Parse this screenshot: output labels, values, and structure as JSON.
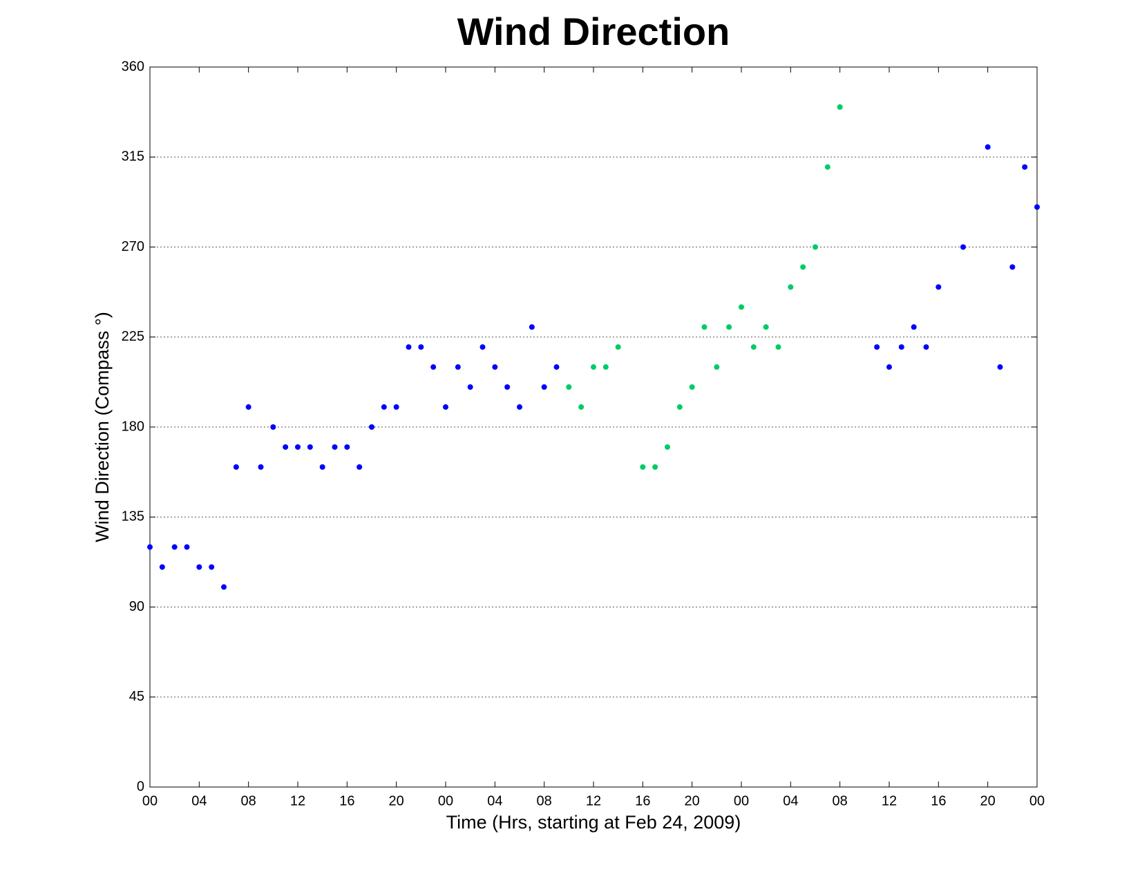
{
  "chart_data": {
    "type": "scatter",
    "title": "Wind Direction",
    "xlabel": "Time (Hrs, starting at Feb 24, 2009)",
    "ylabel": "Wind Direction (Compass °)",
    "xlim": [
      0,
      72
    ],
    "ylim": [
      0,
      360
    ],
    "xticks": [
      {
        "value": 0,
        "label": "00"
      },
      {
        "value": 4,
        "label": "04"
      },
      {
        "value": 8,
        "label": "08"
      },
      12,
      16,
      20,
      {
        "value": 24,
        "label": "00"
      },
      {
        "value": 28,
        "label": "04"
      },
      {
        "value": 32,
        "label": "08"
      },
      {
        "value": 36,
        "label": "12"
      },
      {
        "value": 40,
        "label": "16"
      },
      {
        "value": 44,
        "label": "20"
      },
      {
        "value": 48,
        "label": "00"
      },
      {
        "value": 52,
        "label": "04"
      },
      {
        "value": 56,
        "label": "08"
      },
      {
        "value": 60,
        "label": "12"
      },
      {
        "value": 64,
        "label": "16"
      },
      {
        "value": 68,
        "label": "20"
      },
      {
        "value": 72,
        "label": "00"
      }
    ],
    "yticks": [
      0,
      45,
      90,
      135,
      180,
      225,
      270,
      315,
      360
    ],
    "grid": true,
    "series": [
      {
        "color": "#0000ff",
        "x": [
          0,
          1,
          2,
          3,
          4,
          5,
          6,
          7,
          8,
          9,
          10,
          11,
          12,
          13,
          14,
          15,
          16,
          17,
          18,
          19,
          20,
          21,
          22,
          23,
          24,
          25,
          26,
          27,
          28,
          29,
          30,
          31,
          32,
          33,
          59,
          60,
          61,
          62,
          63,
          64,
          66,
          68,
          69,
          70,
          71,
          72
        ],
        "values": [
          120,
          110,
          120,
          120,
          110,
          110,
          100,
          160,
          190,
          160,
          180,
          170,
          170,
          170,
          160,
          170,
          170,
          160,
          180,
          190,
          190,
          220,
          220,
          210,
          190,
          210,
          200,
          220,
          210,
          200,
          190,
          230,
          200,
          210,
          220,
          210,
          220,
          230,
          220,
          250,
          270,
          320,
          210,
          260,
          310,
          290
        ]
      },
      {
        "color": "#00cc66",
        "x": [
          34,
          35,
          36,
          37,
          38,
          40,
          41,
          42,
          43,
          44,
          45,
          46,
          47,
          48,
          49,
          50,
          51,
          52,
          53,
          54,
          55,
          56
        ],
        "values": [
          200,
          190,
          210,
          210,
          220,
          160,
          160,
          170,
          190,
          200,
          230,
          210,
          230,
          240,
          220,
          230,
          220,
          250,
          260,
          270,
          310,
          340
        ]
      }
    ]
  }
}
